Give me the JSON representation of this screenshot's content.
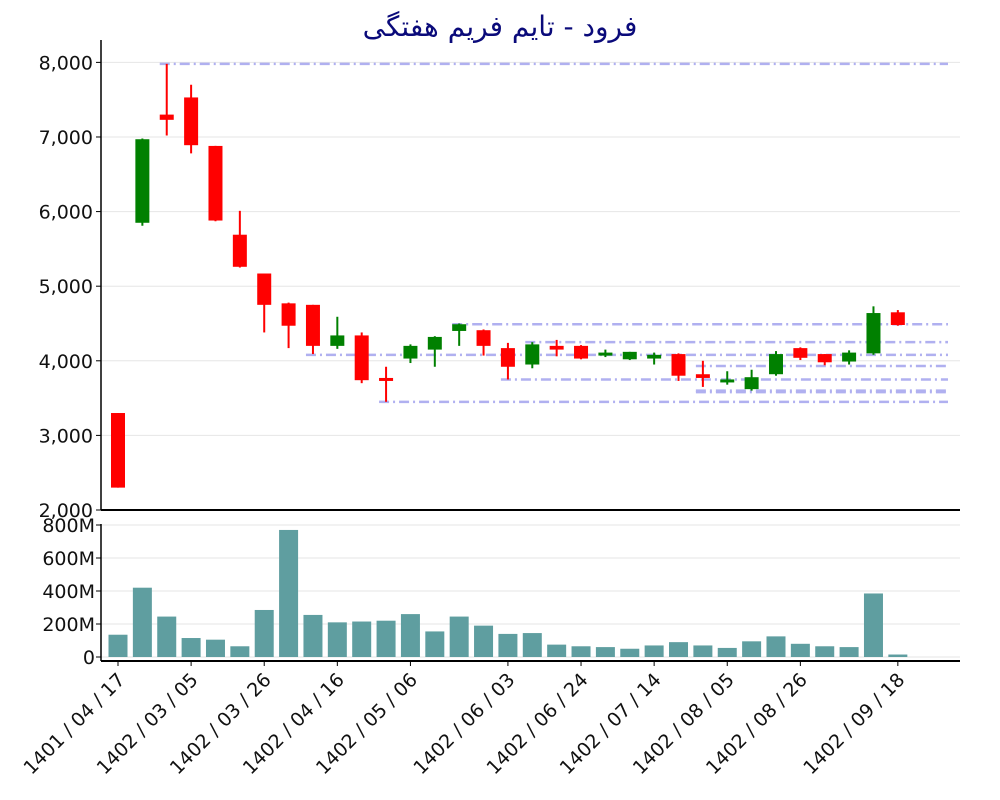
{
  "chart_data": {
    "type": "candlestick",
    "title": "فرود - تایم فریم هفتگی",
    "colors": {
      "up": "#008000",
      "down": "#ff0000",
      "volume": "#5f9ea0",
      "levels": "#b0b0f0",
      "grid": "#e6e6e6"
    },
    "price_axis": {
      "ylim": [
        2000,
        8300
      ],
      "ticks": [
        2000,
        3000,
        4000,
        5000,
        6000,
        7000,
        8000
      ],
      "tick_labels": [
        "2,000",
        "3,000",
        "4,000",
        "5,000",
        "6,000",
        "7,000",
        "8,000"
      ]
    },
    "volume_axis": {
      "ylim": [
        0,
        800000000
      ],
      "ticks": [
        0,
        200000000,
        400000000,
        600000000,
        800000000
      ],
      "tick_labels": [
        "0",
        "200M",
        "400M",
        "600M",
        "800M"
      ]
    },
    "x_tick_labels": [
      {
        "index": 0,
        "label": "1401 / 04 / 17"
      },
      {
        "index": 3,
        "label": "1402 / 03 / 05"
      },
      {
        "index": 6,
        "label": "1402 / 03 / 26"
      },
      {
        "index": 9,
        "label": "1402 / 04 / 16"
      },
      {
        "index": 12,
        "label": "1402 / 05 / 06"
      },
      {
        "index": 16,
        "label": "1402 / 06 / 03"
      },
      {
        "index": 19,
        "label": "1402 / 06 / 24"
      },
      {
        "index": 22,
        "label": "1402 / 07 / 14"
      },
      {
        "index": 25,
        "label": "1402 / 08 / 05"
      },
      {
        "index": 28,
        "label": "1402 / 08 / 26"
      },
      {
        "index": 32,
        "label": "1402 / 09 / 18"
      }
    ],
    "candles": [
      {
        "o": 3300,
        "h": 3300,
        "l": 2300,
        "c": 2300,
        "v": 135000000
      },
      {
        "o": 5850,
        "h": 6980,
        "l": 5810,
        "c": 6970,
        "v": 420000000
      },
      {
        "o": 7300,
        "h": 7980,
        "l": 7020,
        "c": 7230,
        "v": 245000000
      },
      {
        "o": 7530,
        "h": 7700,
        "l": 6780,
        "c": 6890,
        "v": 115000000
      },
      {
        "o": 6880,
        "h": 6880,
        "l": 5870,
        "c": 5880,
        "v": 105000000
      },
      {
        "o": 5690,
        "h": 6010,
        "l": 5250,
        "c": 5260,
        "v": 65000000
      },
      {
        "o": 5170,
        "h": 5170,
        "l": 4380,
        "c": 4750,
        "v": 285000000
      },
      {
        "o": 4770,
        "h": 4780,
        "l": 4170,
        "c": 4470,
        "v": 770000000
      },
      {
        "o": 4750,
        "h": 4750,
        "l": 4090,
        "c": 4200,
        "v": 255000000
      },
      {
        "o": 4200,
        "h": 4590,
        "l": 4160,
        "c": 4340,
        "v": 210000000
      },
      {
        "o": 4340,
        "h": 4380,
        "l": 3700,
        "c": 3740,
        "v": 215000000
      },
      {
        "o": 3770,
        "h": 3920,
        "l": 3450,
        "c": 3740,
        "v": 220000000
      },
      {
        "o": 4030,
        "h": 4220,
        "l": 3970,
        "c": 4200,
        "v": 260000000
      },
      {
        "o": 4150,
        "h": 4330,
        "l": 3920,
        "c": 4320,
        "v": 155000000
      },
      {
        "o": 4400,
        "h": 4500,
        "l": 4200,
        "c": 4490,
        "v": 245000000
      },
      {
        "o": 4410,
        "h": 4420,
        "l": 4070,
        "c": 4200,
        "v": 190000000
      },
      {
        "o": 4170,
        "h": 4240,
        "l": 3750,
        "c": 3920,
        "v": 140000000
      },
      {
        "o": 3950,
        "h": 4250,
        "l": 3900,
        "c": 4220,
        "v": 145000000
      },
      {
        "o": 4200,
        "h": 4280,
        "l": 4060,
        "c": 4150,
        "v": 75000000
      },
      {
        "o": 4200,
        "h": 4210,
        "l": 4020,
        "c": 4030,
        "v": 65000000
      },
      {
        "o": 4080,
        "h": 4150,
        "l": 4050,
        "c": 4110,
        "v": 60000000
      },
      {
        "o": 4020,
        "h": 4120,
        "l": 4010,
        "c": 4120,
        "v": 50000000
      },
      {
        "o": 4030,
        "h": 4110,
        "l": 3950,
        "c": 4080,
        "v": 70000000
      },
      {
        "o": 4090,
        "h": 4100,
        "l": 3730,
        "c": 3800,
        "v": 90000000
      },
      {
        "o": 3820,
        "h": 4000,
        "l": 3650,
        "c": 3770,
        "v": 70000000
      },
      {
        "o": 3720,
        "h": 3860,
        "l": 3680,
        "c": 3750,
        "v": 55000000
      },
      {
        "o": 3620,
        "h": 3880,
        "l": 3600,
        "c": 3780,
        "v": 95000000
      },
      {
        "o": 3820,
        "h": 4130,
        "l": 3800,
        "c": 4090,
        "v": 125000000
      },
      {
        "o": 4170,
        "h": 4180,
        "l": 4010,
        "c": 4040,
        "v": 80000000
      },
      {
        "o": 4090,
        "h": 4090,
        "l": 3940,
        "c": 3980,
        "v": 65000000
      },
      {
        "o": 3990,
        "h": 4140,
        "l": 3950,
        "c": 4110,
        "v": 60000000
      },
      {
        "o": 4100,
        "h": 4730,
        "l": 4080,
        "c": 4640,
        "v": 385000000
      },
      {
        "o": 4650,
        "h": 4680,
        "l": 4470,
        "c": 4480,
        "v": 15000000
      }
    ],
    "levels": [
      {
        "y": 7980,
        "from_index": 2
      },
      {
        "y": 4490,
        "from_index": 14
      },
      {
        "y": 4250,
        "from_index": 17
      },
      {
        "y": 4080,
        "from_index": 8
      },
      {
        "y": 3930,
        "from_index": 24
      },
      {
        "y": 3750,
        "from_index": 16
      },
      {
        "y": 3600,
        "from_index": 24
      },
      {
        "y": 3580,
        "from_index": 24
      },
      {
        "y": 3450,
        "from_index": 11
      }
    ]
  }
}
